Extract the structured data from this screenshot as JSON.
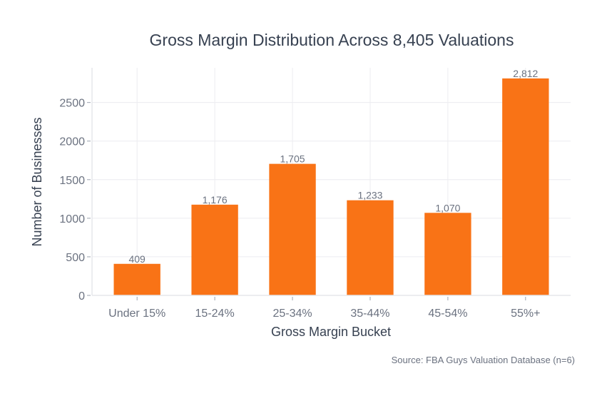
{
  "chart_data": {
    "type": "bar",
    "title": "Gross Margin Distribution Across 8,405 Valuations",
    "xlabel": "Gross Margin Bucket",
    "ylabel": "Number of Businesses",
    "categories": [
      "Under 15%",
      "15-24%",
      "25-34%",
      "35-44%",
      "45-54%",
      "55%+"
    ],
    "values": [
      409,
      1176,
      1705,
      1233,
      1070,
      2812
    ],
    "data_labels": [
      "409",
      "1,176",
      "1,705",
      "1,233",
      "1,070",
      "2,812"
    ],
    "yticks": [
      0,
      500,
      1000,
      1500,
      2000,
      2500
    ],
    "ylim": [
      0,
      2950
    ],
    "grid": true,
    "bar_color": "#f97316",
    "source": "Source: FBA Guys Valuation Database (n=6)"
  }
}
